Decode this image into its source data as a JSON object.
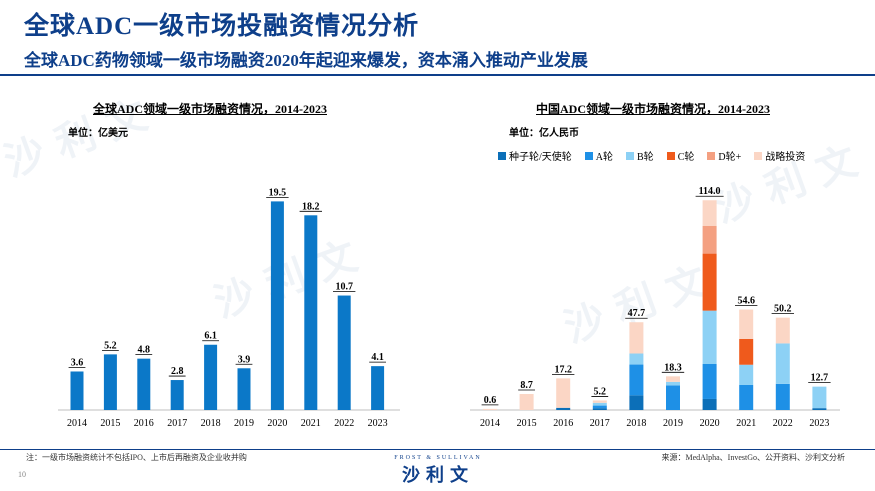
{
  "header": {
    "title": "全球ADC一级市场投融资情况分析",
    "subtitle": "全球ADC药物领域一级市场融资2020年起迎来爆发，资本涌入推动产业发展"
  },
  "footer": {
    "note": "注：一级市场融资统计不包括IPO、上市后再融资及企业收并购",
    "source": "来源：MedAlpha、InvestGo、公开资料、沙利文分析",
    "page_number": "10",
    "brand_top": "FROST & SULLIVAN",
    "brand_main": "沙利文",
    "watermark_text": "沙利文"
  },
  "colors": {
    "primary": "#0e3f8a",
    "bar_global": "#0b78c8",
    "seed_angel": "#0c6fb8",
    "a_round": "#1e90e6",
    "b_round": "#8dd1f5",
    "c_round": "#ef5a1c",
    "d_round": "#f4a081",
    "strategic": "#fbd6c5"
  },
  "chart_data": [
    {
      "type": "bar",
      "title": "全球ADC领域一级市场融资情况，2014-2023",
      "unit": "单位：亿美元",
      "categories": [
        "2014",
        "2015",
        "2016",
        "2017",
        "2018",
        "2019",
        "2020",
        "2021",
        "2022",
        "2023"
      ],
      "values": [
        3.6,
        5.2,
        4.8,
        2.8,
        6.1,
        3.9,
        19.5,
        18.2,
        10.7,
        4.1
      ],
      "value_labels": [
        "3.6",
        "5.2",
        "4.8",
        "2.8",
        "6.1",
        "3.9",
        "19.5",
        "18.2",
        "10.7",
        "4.1"
      ],
      "ylim": [
        0,
        21.5
      ]
    },
    {
      "type": "bar",
      "stacked": true,
      "title": "中国ADC领域一级市场融资情况，2014-2023",
      "unit": "单位：亿人民币",
      "categories": [
        "2014",
        "2015",
        "2016",
        "2017",
        "2018",
        "2019",
        "2020",
        "2021",
        "2022",
        "2023"
      ],
      "totals": [
        0.6,
        8.7,
        17.2,
        5.2,
        47.7,
        18.3,
        114.0,
        54.6,
        50.2,
        12.7
      ],
      "total_labels": [
        "0.6",
        "8.7",
        "17.2",
        "5.2",
        "47.7",
        "18.3",
        "114.0",
        "54.6",
        "50.2",
        "12.7"
      ],
      "ylim": [
        0,
        125
      ],
      "legend_position": "top",
      "series": [
        {
          "name": "种子轮/天使轮",
          "color_key": "seed_angel",
          "values": [
            0.0,
            0.0,
            1.2,
            1.0,
            8.0,
            0.0,
            6.0,
            0.0,
            0.0,
            1.0
          ]
        },
        {
          "name": "A轮",
          "color_key": "a_round",
          "values": [
            0.0,
            0.0,
            0.0,
            1.4,
            16.7,
            13.3,
            19.0,
            13.6,
            14.2,
            0.0
          ]
        },
        {
          "name": "B轮",
          "color_key": "b_round",
          "values": [
            0.0,
            0.0,
            0.0,
            1.5,
            6.0,
            2.0,
            29.0,
            11.0,
            22.0,
            11.7
          ]
        },
        {
          "name": "C轮",
          "color_key": "c_round",
          "values": [
            0.0,
            0.0,
            0.0,
            0.0,
            0.0,
            0.0,
            31.0,
            14.0,
            0.0,
            0.0
          ]
        },
        {
          "name": "D轮+",
          "color_key": "d_round",
          "values": [
            0.0,
            0.0,
            0.0,
            0.0,
            0.0,
            0.0,
            15.0,
            0.0,
            0.0,
            0.0
          ]
        },
        {
          "name": "战略投资",
          "color_key": "strategic",
          "values": [
            0.6,
            8.7,
            16.0,
            1.3,
            17.0,
            3.0,
            14.0,
            16.0,
            14.0,
            0.0
          ]
        }
      ]
    }
  ]
}
